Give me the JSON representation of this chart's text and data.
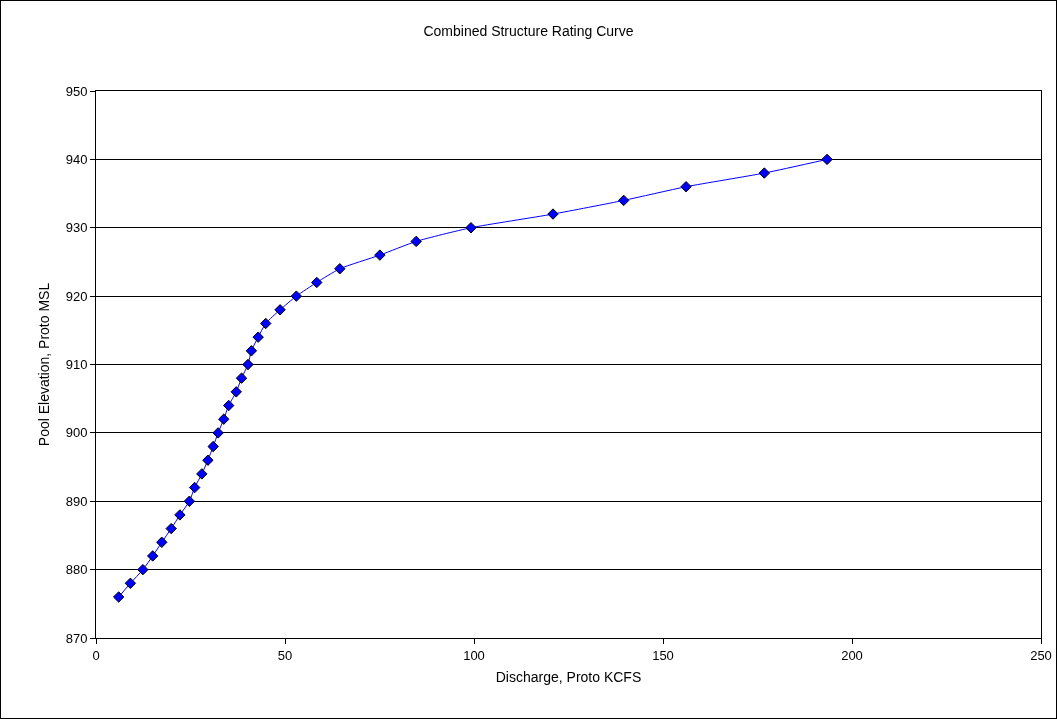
{
  "chart_data": {
    "type": "line",
    "title": "Combined Structure Rating Curve",
    "xlabel": "Discharge, Proto KCFS",
    "ylabel": "Pool Elevation, Proto MSL",
    "series": [
      {
        "color": "#0000ff",
        "x": [
          6.0,
          9.1,
          12.4,
          15.0,
          17.4,
          19.9,
          22.2,
          24.7,
          26.1,
          28.0,
          29.6,
          31.0,
          32.3,
          33.8,
          35.1,
          37.1,
          38.5,
          40.2,
          41.1,
          42.9,
          44.9,
          48.7,
          53.0,
          58.4,
          64.5,
          75.1,
          84.7,
          99.2,
          120.9,
          139.6,
          156.1,
          176.8,
          193.4
        ],
        "values": [
          876,
          878,
          880,
          882,
          884,
          886,
          888,
          890,
          892,
          894,
          896,
          898,
          900,
          902,
          904,
          906,
          908,
          910,
          912,
          914,
          916,
          918,
          920,
          922,
          924,
          926,
          928,
          930,
          932,
          934,
          936,
          938,
          940
        ]
      }
    ],
    "xlim": [
      0,
      250
    ],
    "xticks": [
      0,
      50,
      100,
      150,
      200,
      250
    ],
    "ylim": [
      870,
      950
    ],
    "yticks": [
      870,
      880,
      890,
      900,
      910,
      920,
      930,
      940,
      950
    ],
    "grid": "y",
    "legend": false,
    "marker": "diamond",
    "line_style": "solid"
  }
}
